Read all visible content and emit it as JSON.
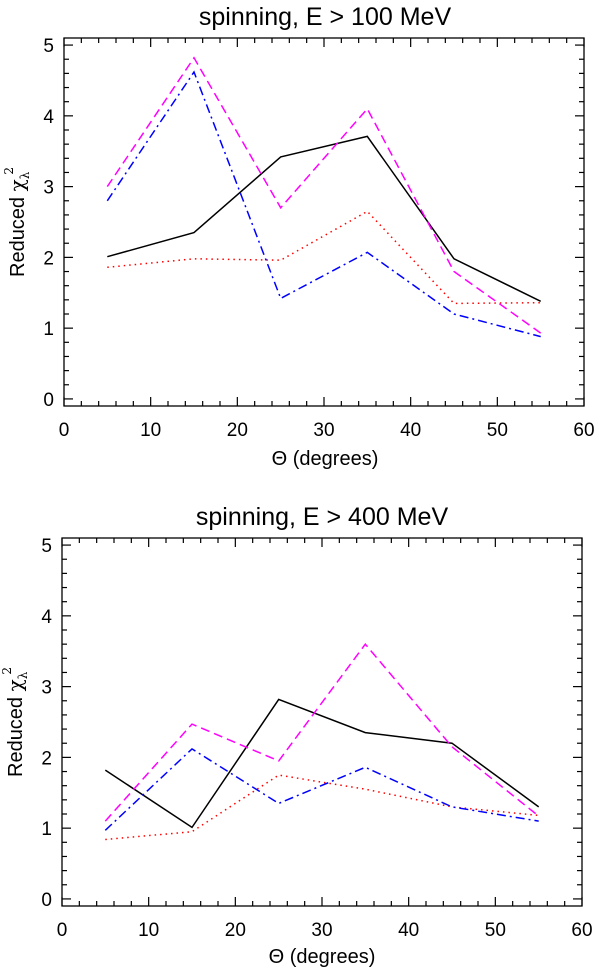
{
  "chart_data": [
    {
      "type": "line",
      "title": "spinning, E > 100 MeV",
      "xlabel": "Θ (degrees)",
      "ylabel": {
        "prefix": "Reduced ",
        "symbol": "χ",
        "subscript": "λ",
        "superscript": "2"
      },
      "xlim": [
        0,
        60
      ],
      "ylim": [
        -0.1,
        5.1
      ],
      "x_ticks": [
        "0",
        "10",
        "20",
        "30",
        "40",
        "50",
        "60"
      ],
      "y_ticks": [
        "0",
        "1",
        "2",
        "3",
        "4",
        "5"
      ],
      "x": [
        5,
        15,
        25,
        35,
        45,
        55
      ],
      "series": [
        {
          "name": "solid",
          "style": "solid",
          "color": "#000000",
          "values": [
            2.01,
            2.35,
            3.42,
            3.71,
            1.98,
            1.38
          ]
        },
        {
          "name": "dotted",
          "style": "dotted",
          "color": "#ff0000",
          "values": [
            1.86,
            1.98,
            1.96,
            2.65,
            1.35,
            1.36
          ]
        },
        {
          "name": "dashed",
          "style": "dashed",
          "color": "#ff00ff",
          "values": [
            3.0,
            4.82,
            2.7,
            4.1,
            1.8,
            0.93
          ]
        },
        {
          "name": "dash-dot",
          "style": "dashdot",
          "color": "#0000ff",
          "values": [
            2.8,
            4.62,
            1.42,
            2.07,
            1.2,
            0.88
          ]
        }
      ]
    },
    {
      "type": "line",
      "title": "spinning, E > 400 MeV",
      "xlabel": "Θ (degrees)",
      "ylabel": {
        "prefix": "Reduced ",
        "symbol": "χ",
        "subscript": "λ",
        "superscript": "2"
      },
      "xlim": [
        0,
        60
      ],
      "ylim": [
        -0.1,
        5.1
      ],
      "x_ticks": [
        "0",
        "10",
        "20",
        "30",
        "40",
        "50",
        "60"
      ],
      "y_ticks": [
        "0",
        "1",
        "2",
        "3",
        "4",
        "5"
      ],
      "x": [
        5,
        15,
        25,
        35,
        45,
        55
      ],
      "series": [
        {
          "name": "solid",
          "style": "solid",
          "color": "#000000",
          "values": [
            1.82,
            1.01,
            2.82,
            2.35,
            2.2,
            1.3
          ]
        },
        {
          "name": "dotted",
          "style": "dotted",
          "color": "#ff0000",
          "values": [
            0.84,
            0.95,
            1.75,
            1.55,
            1.3,
            1.18
          ]
        },
        {
          "name": "dashed",
          "style": "dashed",
          "color": "#ff00ff",
          "values": [
            1.1,
            2.47,
            1.95,
            3.6,
            2.15,
            1.17
          ]
        },
        {
          "name": "dash-dot",
          "style": "dashdot",
          "color": "#0000ff",
          "values": [
            0.97,
            2.12,
            1.35,
            1.86,
            1.3,
            1.1
          ]
        }
      ]
    }
  ]
}
